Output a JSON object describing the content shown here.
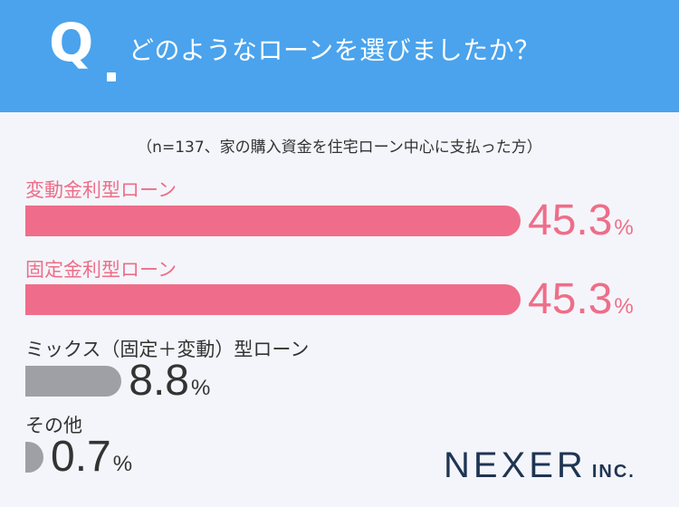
{
  "header": {
    "q_mark": "Q",
    "question": "どのようなローンを選びましたか？"
  },
  "note": "（n=137、家の購入資金を住宅ローン中心に支払った方）",
  "chart_data": {
    "type": "bar",
    "orientation": "horizontal",
    "categories": [
      "変動金利型ローン",
      "固定金利型ローン",
      "ミックス（固定＋変動）型ローン",
      "その他"
    ],
    "values": [
      45.3,
      45.3,
      8.8,
      0.7
    ],
    "value_labels": [
      "45.3",
      "45.3",
      "8.8",
      "0.7"
    ],
    "unit": "%",
    "colors": [
      "#ef6d8a",
      "#ef6d8a",
      "#9fa0a5",
      "#9fa0a5"
    ],
    "label_colors": [
      "#ee6e89",
      "#ee6e89",
      "#333333",
      "#333333"
    ],
    "xlim": [
      0,
      100
    ],
    "grid": false
  },
  "logo": {
    "main": "NEXER",
    "suffix": "INC."
  }
}
